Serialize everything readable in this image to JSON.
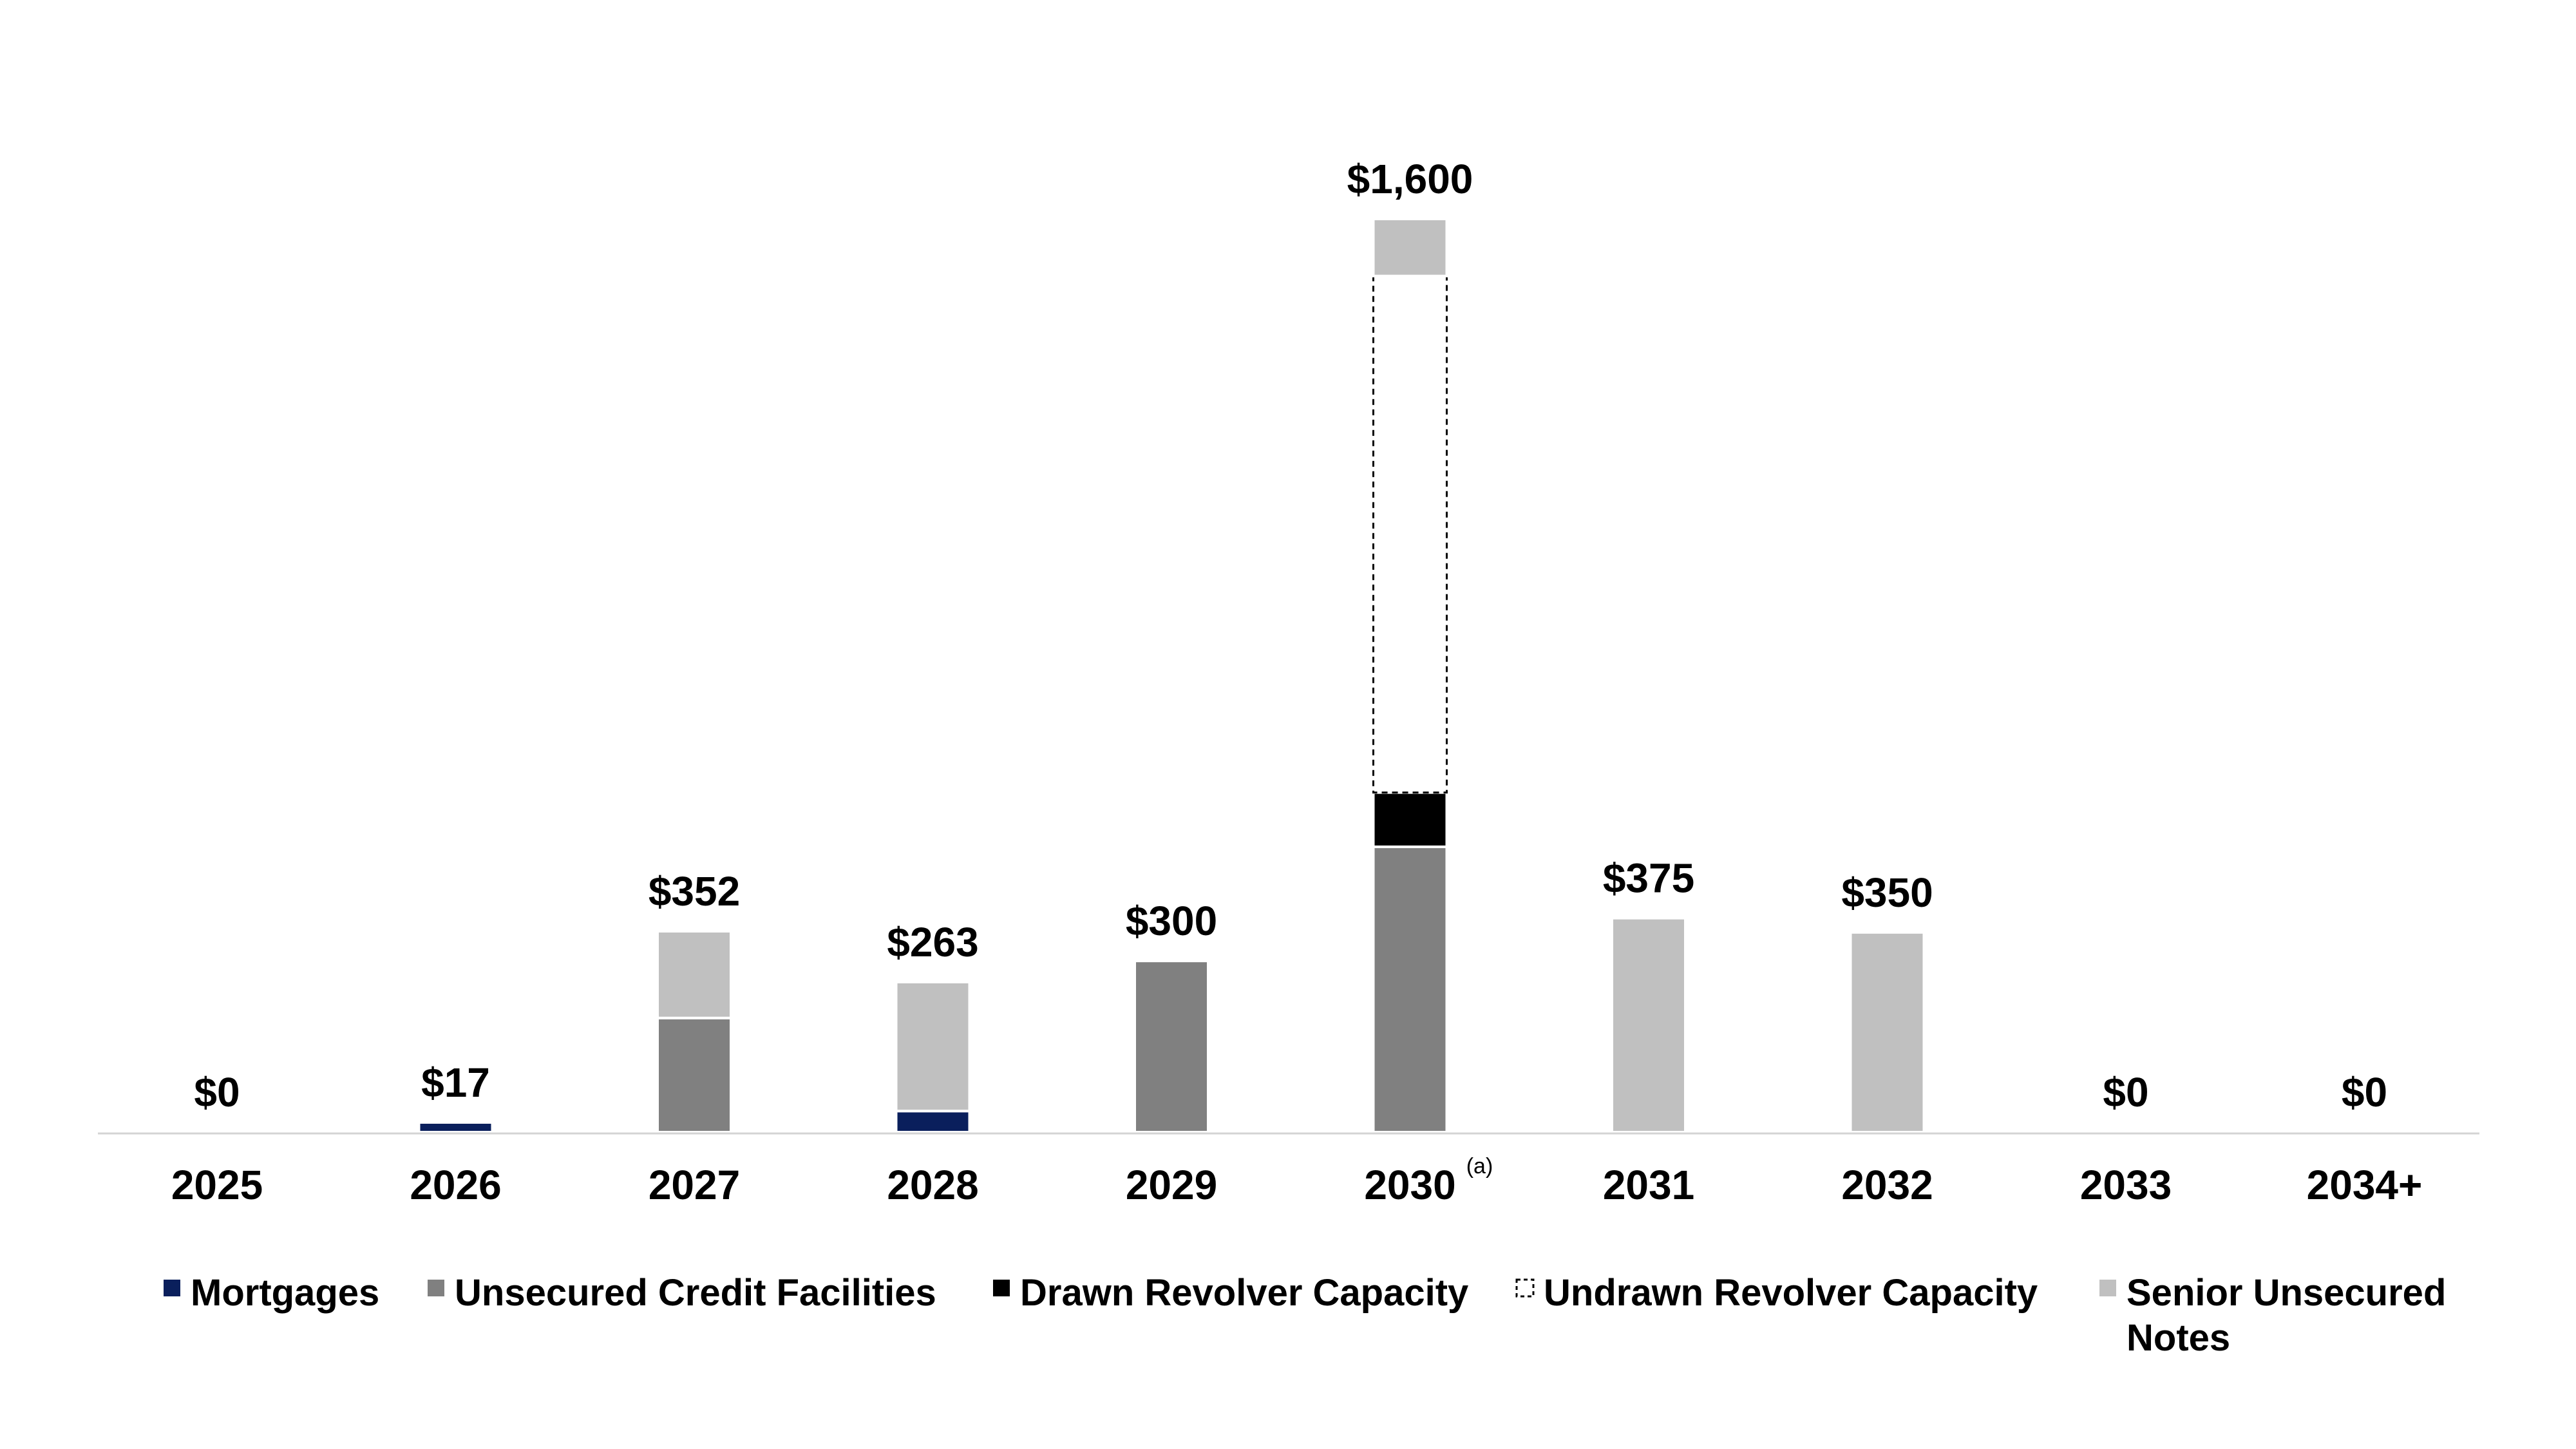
{
  "chart_data": {
    "type": "bar",
    "stacked": true,
    "currency_prefix": "$",
    "categories": [
      "2025",
      "2026",
      "2027",
      "2028",
      "2029",
      "2030",
      "2031",
      "2032",
      "2033",
      "2034+"
    ],
    "category_notes": [
      "",
      "",
      "",
      "",
      "",
      "(a)",
      "",
      "",
      "",
      ""
    ],
    "totals": [
      "$0",
      "$17",
      "$352",
      "$263",
      "$300",
      "$1,600",
      "$375",
      "$350",
      "$0",
      "$0"
    ],
    "series": [
      {
        "name": "Mortgages",
        "color": "#0a1f5c",
        "style": "solid",
        "values": [
          0,
          17,
          0,
          37,
          0,
          0,
          0,
          0,
          0,
          0
        ]
      },
      {
        "name": "Unsecured Credit Facilities",
        "color": "#808080",
        "style": "solid",
        "values": [
          0,
          0,
          200,
          0,
          300,
          500,
          0,
          0,
          0,
          0
        ]
      },
      {
        "name": "Drawn Revolver Capacity",
        "color": "#000000",
        "style": "solid",
        "values": [
          0,
          0,
          0,
          0,
          0,
          95,
          0,
          0,
          0,
          0
        ]
      },
      {
        "name": "Undrawn Revolver Capacity",
        "color": "#ffffff",
        "style": "dashed",
        "values": [
          0,
          0,
          0,
          0,
          0,
          905,
          0,
          0,
          0,
          0
        ]
      },
      {
        "name": "Senior Unsecured Notes",
        "color": "#c0c0c0",
        "style": "solid",
        "values": [
          0,
          0,
          152,
          226,
          0,
          100,
          375,
          350,
          0,
          0
        ]
      }
    ],
    "legend_lines": [
      [
        "Mortgages"
      ],
      [
        "Unsecured Credit Facilities"
      ],
      [
        "Drawn Revolver Capacity"
      ],
      [
        "Undrawn Revolver Capacity"
      ],
      [
        "Senior Unsecured",
        "Notes"
      ]
    ],
    "ylim": [
      0,
      1600
    ],
    "grid": false,
    "legend_position": "bottom"
  }
}
